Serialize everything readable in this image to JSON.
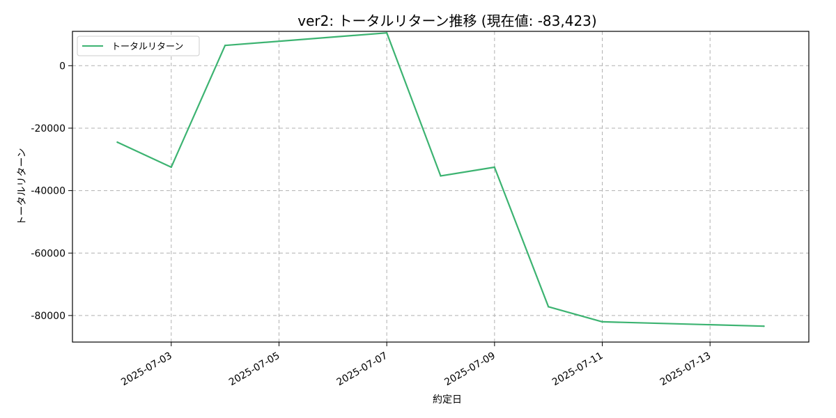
{
  "chart_data": {
    "type": "line",
    "title": "ver2: トータルリターン推移 (現在値: -83,423)",
    "xlabel": "約定日",
    "ylabel": "トータルリターン",
    "x_type": "date",
    "xlim": [
      "2025-07-01T04:00",
      "2025-07-14T20:00"
    ],
    "ylim": [
      -88500,
      11000
    ],
    "xticks": [
      "2025-07-03",
      "2025-07-05",
      "2025-07-07",
      "2025-07-09",
      "2025-07-11",
      "2025-07-13"
    ],
    "yticks": [
      0,
      -20000,
      -40000,
      -60000,
      -80000
    ],
    "grid": true,
    "legend": {
      "placement": "top-left",
      "entries": [
        "トータルリターン"
      ]
    },
    "series": [
      {
        "name": "トータルリターン",
        "color": "#3cb371",
        "points": [
          {
            "x": "2025-07-02",
            "y": -24500
          },
          {
            "x": "2025-07-03",
            "y": -32500
          },
          {
            "x": "2025-07-04",
            "y": 6500
          },
          {
            "x": "2025-07-07",
            "y": 10500
          },
          {
            "x": "2025-07-08",
            "y": -35300
          },
          {
            "x": "2025-07-09",
            "y": -32500
          },
          {
            "x": "2025-07-10",
            "y": -77200
          },
          {
            "x": "2025-07-11",
            "y": -82000
          },
          {
            "x": "2025-07-14",
            "y": -83423
          }
        ]
      }
    ]
  }
}
